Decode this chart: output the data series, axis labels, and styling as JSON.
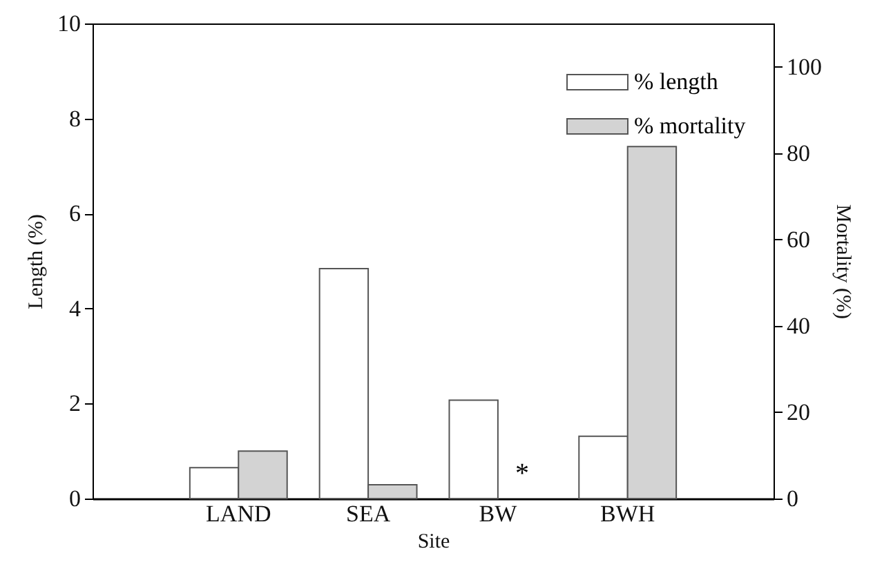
{
  "chart_data": {
    "type": "bar",
    "xlabel": "Site",
    "ylabel": "Length (%)",
    "y2label": "Mortality (%)",
    "categories": [
      "LAND",
      "SEA",
      "BW",
      "BWH"
    ],
    "series": [
      {
        "name": "% length",
        "color": "#ffffff",
        "values": [
          0.65,
          4.84,
          2.07,
          1.31
        ]
      },
      {
        "name": "% mortality",
        "color": "#d3d3d3",
        "axis": "y2",
        "values": [
          11.0,
          3.2,
          null,
          81.5
        ]
      }
    ],
    "ylim": [
      0,
      10
    ],
    "yticks": [
      0,
      2,
      4,
      6,
      8,
      10
    ],
    "y2lim": [
      0,
      110
    ],
    "y2ticks": [
      0,
      20,
      40,
      60,
      80,
      100
    ],
    "annotations": [
      {
        "text": "*",
        "x": "BW",
        "y": 0
      }
    ],
    "grid": false,
    "legend": "top right"
  }
}
